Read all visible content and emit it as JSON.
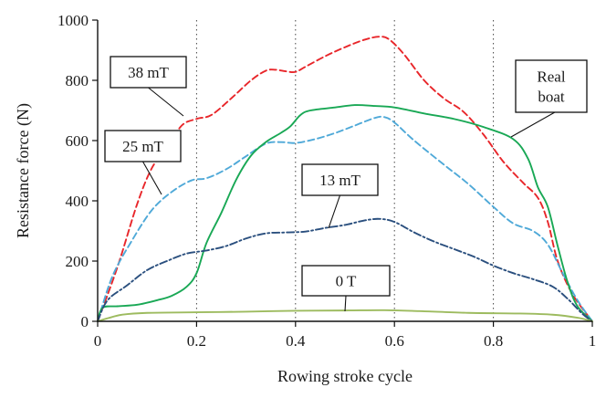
{
  "chart_data": {
    "type": "line",
    "title": "",
    "xlabel": "Rowing stroke cycle",
    "ylabel": "Resistance force (N)",
    "xlim": [
      0,
      1
    ],
    "ylim": [
      0,
      1000
    ],
    "x_ticks": [
      "0",
      "0.2",
      "0.4",
      "0.6",
      "0.8",
      "1"
    ],
    "y_ticks": [
      "0",
      "200",
      "400",
      "600",
      "800",
      "1000"
    ],
    "grid": "dotted at x ticks",
    "series": [
      {
        "name": "38 mT",
        "color": "#e8262a",
        "dash": "dashed",
        "points": [
          [
            0,
            0
          ],
          [
            0.04,
            180
          ],
          [
            0.08,
            390
          ],
          [
            0.11,
            510
          ],
          [
            0.14,
            575
          ],
          [
            0.17,
            650
          ],
          [
            0.2,
            672
          ],
          [
            0.23,
            685
          ],
          [
            0.27,
            740
          ],
          [
            0.31,
            800
          ],
          [
            0.34,
            832
          ],
          [
            0.36,
            835
          ],
          [
            0.38,
            830
          ],
          [
            0.4,
            828
          ],
          [
            0.42,
            845
          ],
          [
            0.46,
            880
          ],
          [
            0.5,
            910
          ],
          [
            0.54,
            935
          ],
          [
            0.57,
            945
          ],
          [
            0.59,
            935
          ],
          [
            0.62,
            885
          ],
          [
            0.66,
            800
          ],
          [
            0.7,
            740
          ],
          [
            0.74,
            695
          ],
          [
            0.78,
            620
          ],
          [
            0.82,
            530
          ],
          [
            0.86,
            460
          ],
          [
            0.89,
            410
          ],
          [
            0.91,
            330
          ],
          [
            0.93,
            200
          ],
          [
            0.96,
            90
          ],
          [
            1.0,
            0
          ]
        ]
      },
      {
        "name": "25 mT",
        "color": "#4fa9d8",
        "dash": "dashed",
        "points": [
          [
            0,
            0
          ],
          [
            0.03,
            150
          ],
          [
            0.07,
            270
          ],
          [
            0.11,
            370
          ],
          [
            0.15,
            430
          ],
          [
            0.19,
            468
          ],
          [
            0.22,
            475
          ],
          [
            0.26,
            505
          ],
          [
            0.3,
            548
          ],
          [
            0.34,
            590
          ],
          [
            0.37,
            595
          ],
          [
            0.4,
            592
          ],
          [
            0.44,
            605
          ],
          [
            0.48,
            625
          ],
          [
            0.52,
            650
          ],
          [
            0.56,
            675
          ],
          [
            0.58,
            678
          ],
          [
            0.6,
            660
          ],
          [
            0.64,
            600
          ],
          [
            0.7,
            520
          ],
          [
            0.75,
            455
          ],
          [
            0.8,
            380
          ],
          [
            0.84,
            325
          ],
          [
            0.88,
            300
          ],
          [
            0.91,
            255
          ],
          [
            0.94,
            160
          ],
          [
            0.97,
            70
          ],
          [
            1.0,
            0
          ]
        ]
      },
      {
        "name": "Real boat",
        "color": "#19a855",
        "dash": "solid",
        "points": [
          [
            0,
            0
          ],
          [
            0.01,
            45
          ],
          [
            0.04,
            50
          ],
          [
            0.08,
            55
          ],
          [
            0.12,
            70
          ],
          [
            0.15,
            85
          ],
          [
            0.18,
            115
          ],
          [
            0.2,
            160
          ],
          [
            0.22,
            260
          ],
          [
            0.25,
            360
          ],
          [
            0.28,
            470
          ],
          [
            0.31,
            550
          ],
          [
            0.34,
            595
          ],
          [
            0.37,
            625
          ],
          [
            0.39,
            648
          ],
          [
            0.41,
            685
          ],
          [
            0.43,
            700
          ],
          [
            0.48,
            710
          ],
          [
            0.52,
            718
          ],
          [
            0.56,
            715
          ],
          [
            0.6,
            710
          ],
          [
            0.66,
            690
          ],
          [
            0.72,
            672
          ],
          [
            0.78,
            645
          ],
          [
            0.84,
            605
          ],
          [
            0.87,
            540
          ],
          [
            0.89,
            445
          ],
          [
            0.91,
            380
          ],
          [
            0.93,
            250
          ],
          [
            0.95,
            130
          ],
          [
            0.97,
            50
          ],
          [
            1.0,
            0
          ]
        ]
      },
      {
        "name": "13 mT",
        "color": "#2a4f7e",
        "dash": "dash-dot",
        "points": [
          [
            0,
            0
          ],
          [
            0.02,
            70
          ],
          [
            0.06,
            120
          ],
          [
            0.1,
            170
          ],
          [
            0.14,
            200
          ],
          [
            0.18,
            225
          ],
          [
            0.22,
            235
          ],
          [
            0.26,
            250
          ],
          [
            0.3,
            275
          ],
          [
            0.34,
            292
          ],
          [
            0.38,
            295
          ],
          [
            0.42,
            298
          ],
          [
            0.46,
            310
          ],
          [
            0.5,
            320
          ],
          [
            0.54,
            335
          ],
          [
            0.57,
            340
          ],
          [
            0.6,
            330
          ],
          [
            0.64,
            295
          ],
          [
            0.68,
            265
          ],
          [
            0.72,
            240
          ],
          [
            0.76,
            215
          ],
          [
            0.8,
            185
          ],
          [
            0.84,
            160
          ],
          [
            0.88,
            140
          ],
          [
            0.92,
            115
          ],
          [
            0.95,
            75
          ],
          [
            0.98,
            25
          ],
          [
            1.0,
            0
          ]
        ]
      },
      {
        "name": "0 T",
        "color": "#9dbb5f",
        "dash": "solid",
        "points": [
          [
            0,
            0
          ],
          [
            0.02,
            10
          ],
          [
            0.05,
            22
          ],
          [
            0.1,
            28
          ],
          [
            0.2,
            30
          ],
          [
            0.3,
            32
          ],
          [
            0.4,
            35
          ],
          [
            0.5,
            36
          ],
          [
            0.58,
            37
          ],
          [
            0.65,
            34
          ],
          [
            0.75,
            28
          ],
          [
            0.85,
            26
          ],
          [
            0.92,
            22
          ],
          [
            0.97,
            12
          ],
          [
            1.0,
            0
          ]
        ]
      }
    ],
    "annotations": [
      {
        "text": "38 mT",
        "series": "38 mT"
      },
      {
        "text": "25 mT",
        "series": "25 mT"
      },
      {
        "text": "13 mT",
        "series": "13 mT"
      },
      {
        "text": "0 T",
        "series": "0 T"
      },
      {
        "text": [
          "Real",
          "boat"
        ],
        "series": "Real boat"
      }
    ]
  }
}
